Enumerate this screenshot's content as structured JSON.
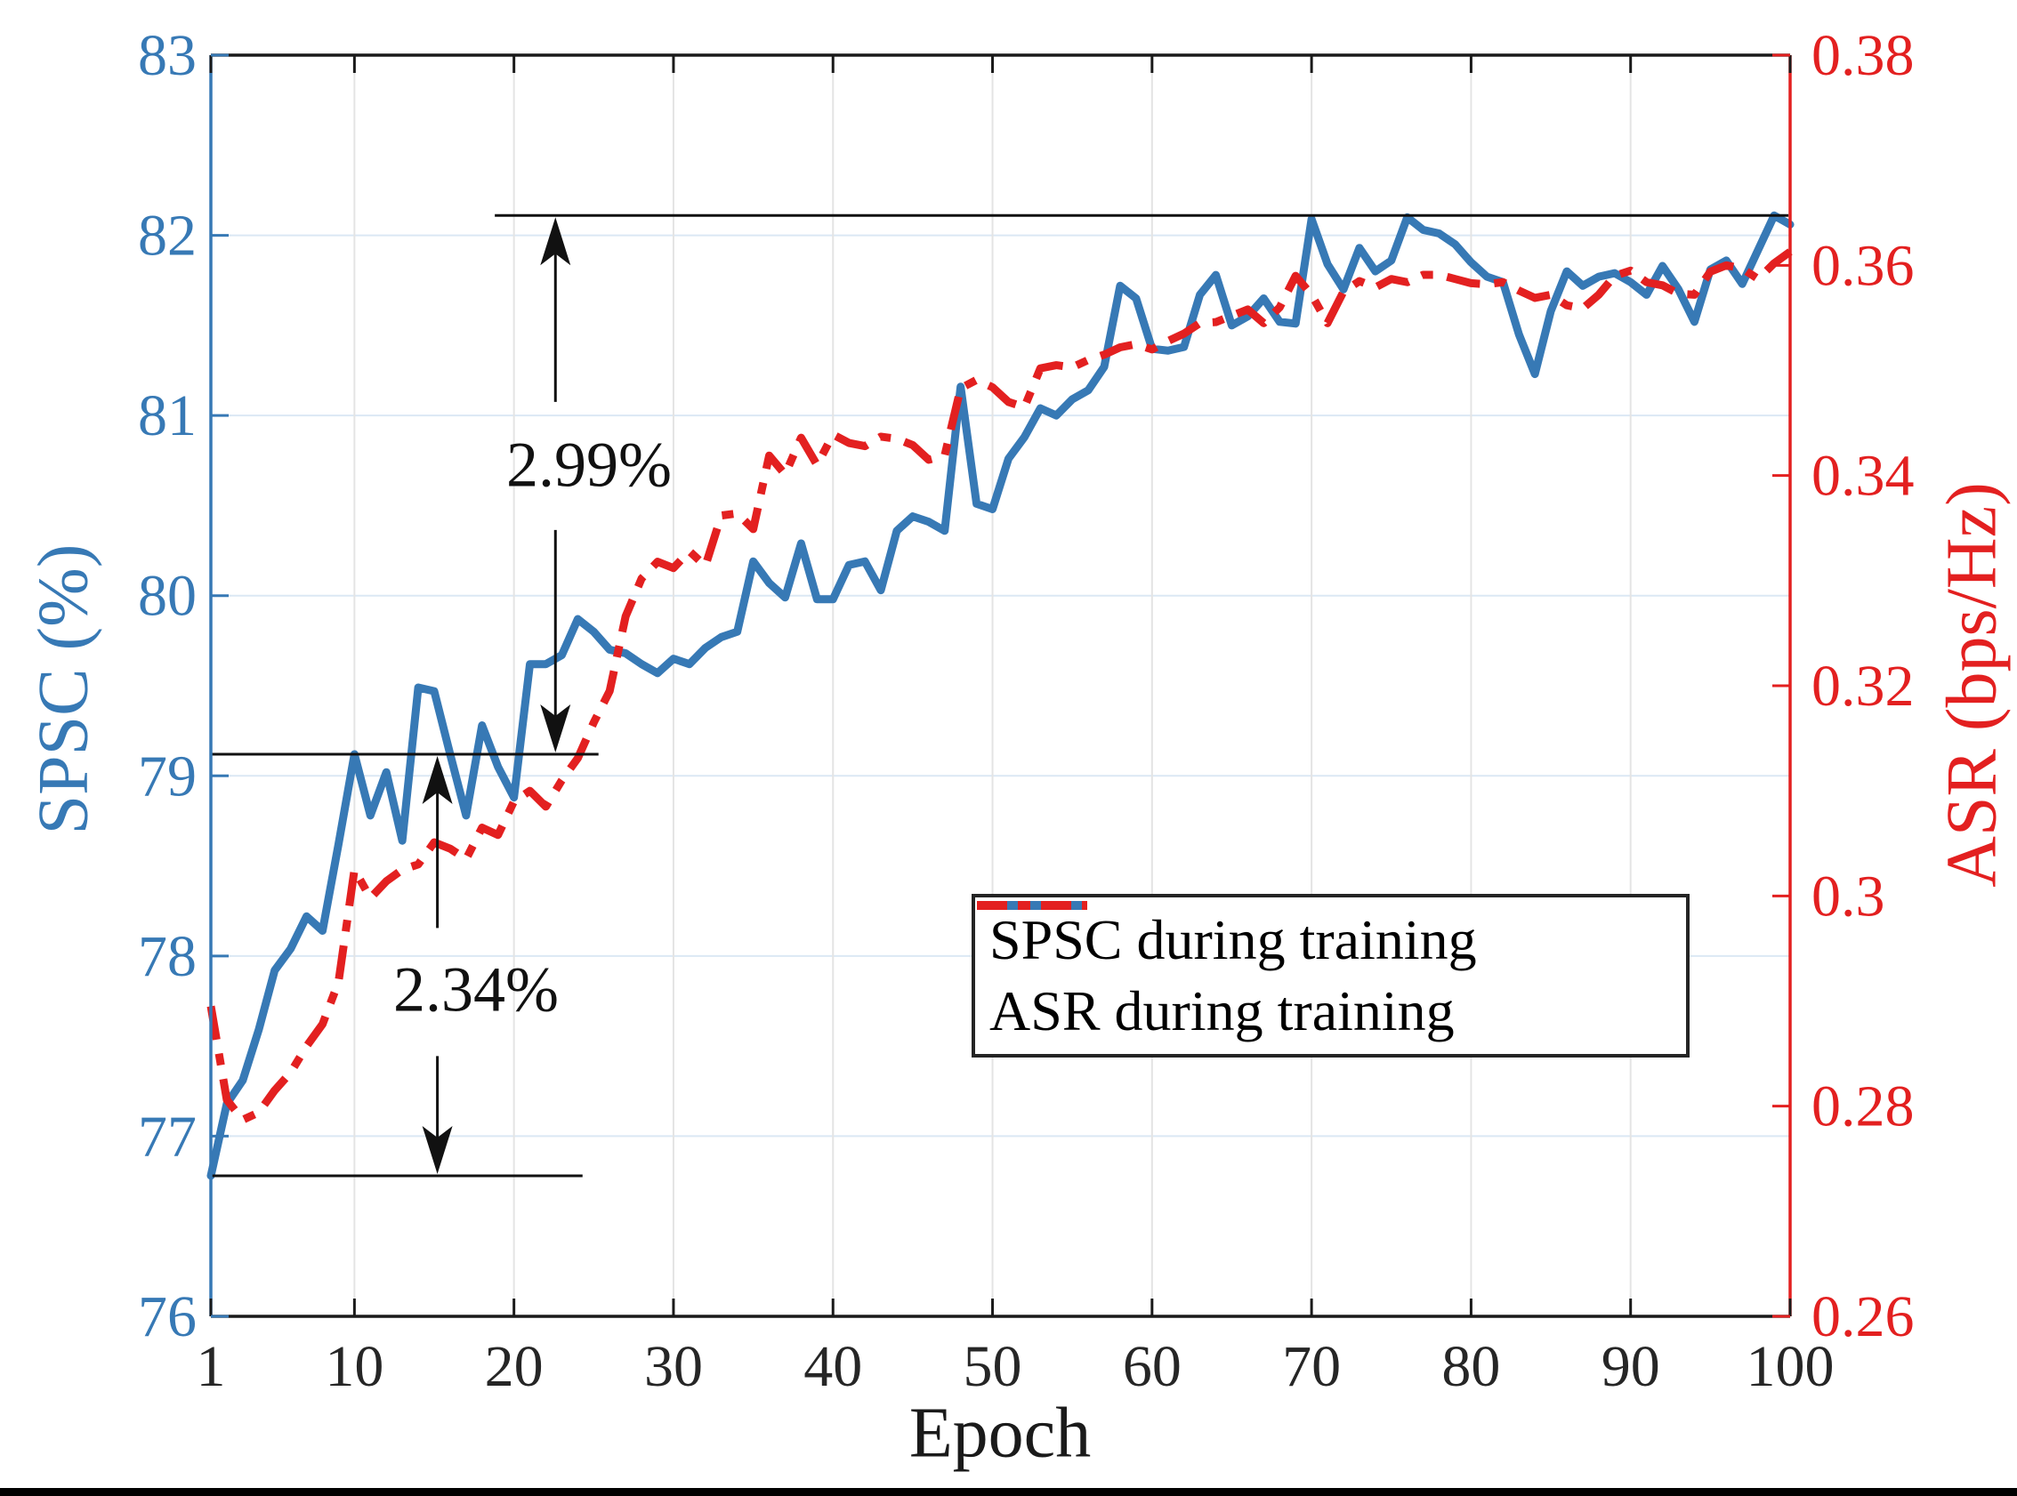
{
  "figure_bg": "#ffffff",
  "chart_data": {
    "type": "line",
    "title": "",
    "xlabel": "Epoch",
    "x_axis": {
      "range": [
        1,
        100
      ],
      "ticks": [
        1,
        10,
        20,
        30,
        40,
        50,
        60,
        70,
        80,
        90,
        100
      ],
      "tick_labels": [
        "1",
        "10",
        "20",
        "30",
        "40",
        "50",
        "60",
        "70",
        "80",
        "90",
        "100"
      ],
      "color": "#262626"
    },
    "left_axis": {
      "label": "SPSC (%)",
      "range": [
        76,
        83
      ],
      "ticks": [
        76,
        77,
        78,
        79,
        80,
        81,
        82,
        83
      ],
      "tick_labels": [
        "76",
        "77",
        "78",
        "79",
        "80",
        "81",
        "82",
        "83"
      ],
      "gridlines": [
        77,
        78,
        79,
        80,
        81,
        82
      ],
      "color": "#3779b5",
      "grid_color": "#dbe8f4"
    },
    "right_axis": {
      "label": "ASR (bps/Hz)",
      "range": [
        0.26,
        0.38
      ],
      "ticks": [
        0.26,
        0.28,
        0.3,
        0.32,
        0.34,
        0.36,
        0.38
      ],
      "tick_labels": [
        "0.26",
        "0.28",
        "0.3",
        "0.32",
        "0.34",
        "0.36",
        "0.38"
      ],
      "color": "#e32020"
    },
    "v_grid_color": "#e4e4e4",
    "legend_position": "inside-center-right",
    "series": [
      {
        "name": "SPSC during training",
        "axis": "left",
        "color": "#3779b5",
        "style": "solid",
        "x_start": 1,
        "x_step": 1,
        "values": [
          76.78,
          77.18,
          77.31,
          77.59,
          77.92,
          78.04,
          78.22,
          78.14,
          78.62,
          79.12,
          78.78,
          79.02,
          78.64,
          79.49,
          79.47,
          79.12,
          78.78,
          79.28,
          79.05,
          78.88,
          79.62,
          79.62,
          79.67,
          79.87,
          79.8,
          79.7,
          79.68,
          79.62,
          79.57,
          79.65,
          79.62,
          79.71,
          79.77,
          79.8,
          80.19,
          80.07,
          79.99,
          80.29,
          79.98,
          79.98,
          80.17,
          80.19,
          80.03,
          80.36,
          80.44,
          80.41,
          80.36,
          81.16,
          80.51,
          80.48,
          80.76,
          80.88,
          81.04,
          81.0,
          81.09,
          81.14,
          81.27,
          81.72,
          81.65,
          81.37,
          81.36,
          81.38,
          81.67,
          81.78,
          81.5,
          81.55,
          81.65,
          81.52,
          81.51,
          82.09,
          81.84,
          81.7,
          81.93,
          81.8,
          81.86,
          82.1,
          82.03,
          82.01,
          81.95,
          81.85,
          81.77,
          81.74,
          81.45,
          81.23,
          81.58,
          81.8,
          81.72,
          81.77,
          81.79,
          81.74,
          81.67,
          81.83,
          81.7,
          81.52,
          81.81,
          81.86,
          81.73,
          81.92,
          82.11,
          82.06
        ]
      },
      {
        "name": "ASR during training",
        "axis": "right",
        "color": "#e32020",
        "style": "dashdot",
        "x_start": 1,
        "x_step": 1,
        "values": [
          0.2895,
          0.2806,
          0.2787,
          0.2794,
          0.2815,
          0.2832,
          0.2857,
          0.2878,
          0.2918,
          0.3025,
          0.2998,
          0.3014,
          0.3025,
          0.303,
          0.3051,
          0.3045,
          0.3035,
          0.3065,
          0.3058,
          0.309,
          0.31,
          0.3085,
          0.311,
          0.3131,
          0.3165,
          0.3195,
          0.3266,
          0.3302,
          0.3318,
          0.3312,
          0.3328,
          0.3314,
          0.3362,
          0.3364,
          0.3349,
          0.3419,
          0.3401,
          0.3436,
          0.341,
          0.3439,
          0.3431,
          0.3428,
          0.3437,
          0.3435,
          0.3429,
          0.3415,
          0.3419,
          0.3483,
          0.3491,
          0.3484,
          0.347,
          0.3465,
          0.3502,
          0.3505,
          0.3503,
          0.351,
          0.3515,
          0.3522,
          0.3525,
          0.352,
          0.3528,
          0.3535,
          0.3545,
          0.3546,
          0.3552,
          0.3558,
          0.3545,
          0.356,
          0.359,
          0.3572,
          0.3545,
          0.3575,
          0.3585,
          0.3579,
          0.3587,
          0.3584,
          0.3591,
          0.3591,
          0.3587,
          0.3583,
          0.3582,
          0.3584,
          0.3576,
          0.3569,
          0.3572,
          0.3562,
          0.3559,
          0.3572,
          0.359,
          0.3595,
          0.3584,
          0.3581,
          0.3573,
          0.3572,
          0.3594,
          0.36,
          0.3597,
          0.3587,
          0.3602,
          0.3613
        ]
      }
    ],
    "annotations": {
      "hlines": [
        {
          "y": 82.11,
          "x1": 18.8,
          "x2": 99.9
        },
        {
          "y": 79.12,
          "x1": 1.0,
          "x2": 25.3
        },
        {
          "y": 76.78,
          "x1": 1.0,
          "x2": 24.3
        }
      ],
      "arrows": [
        {
          "x": 22.6,
          "y_top": 82.11,
          "y_bottom": 79.12,
          "label": "2.99%",
          "label_y": 80.72
        },
        {
          "x": 15.2,
          "y_top": 79.12,
          "y_bottom": 76.78,
          "label": "2.34%",
          "label_y": 77.8
        }
      ]
    }
  }
}
